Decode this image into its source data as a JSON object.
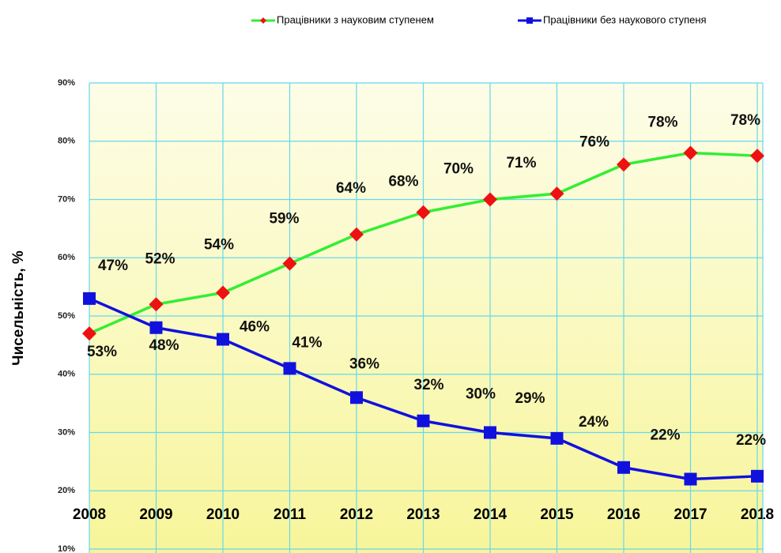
{
  "chart_data": {
    "type": "line",
    "y_label": "Чисельність, %",
    "categories": [
      "2008",
      "2009",
      "2010",
      "2011",
      "2012",
      "2013",
      "2014",
      "2015",
      "2016",
      "2017",
      "2018"
    ],
    "series": [
      {
        "name": "Працівники з науковим ступенем",
        "color": "#33ee33",
        "marker_color": "#ee1111",
        "marker": "diamond",
        "values": [
          47,
          52,
          54,
          59,
          64,
          67.8,
          70,
          71,
          76,
          78,
          77.5
        ],
        "value_labels": [
          "47%",
          "52%",
          "54%",
          "59%",
          "64%",
          "68%",
          "70%",
          "71%",
          "76%",
          "78%",
          "78%"
        ]
      },
      {
        "name": "Працівники без наукового ступеня",
        "color": "#1111dd",
        "marker_color": "#1111dd",
        "marker": "square",
        "values": [
          53,
          48,
          46,
          41,
          36,
          32,
          30,
          29,
          24,
          22,
          22.5
        ],
        "value_labels": [
          "53%",
          "48%",
          "46%",
          "41%",
          "36%",
          "32%",
          "30%",
          "29%",
          "24%",
          "22%",
          "22%"
        ]
      }
    ],
    "ylim": [
      10,
      90
    ],
    "yticks": [
      {
        "value": 10,
        "label": "10%"
      },
      {
        "value": 20,
        "label": "20%"
      },
      {
        "value": 30,
        "label": "30%"
      },
      {
        "value": 40,
        "label": "40%"
      },
      {
        "value": 50,
        "label": "50%"
      },
      {
        "value": 60,
        "label": "60%"
      },
      {
        "value": 70,
        "label": "70%"
      },
      {
        "value": 80,
        "label": "80%"
      },
      {
        "value": 90,
        "label": "90%"
      }
    ],
    "grid": true,
    "legend": "top-right"
  }
}
